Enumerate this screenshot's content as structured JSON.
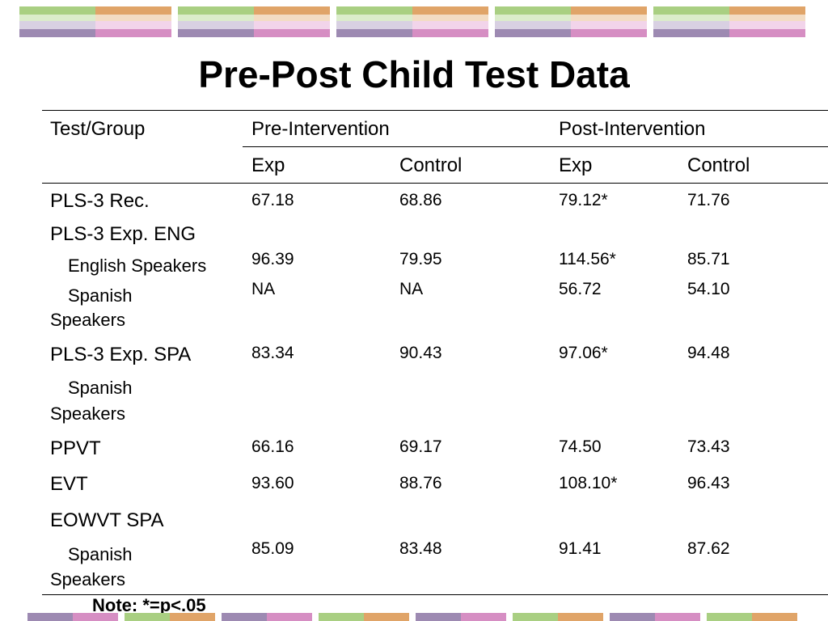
{
  "slide": {
    "title": "Pre-Post Child Test Data",
    "note": "Note: *=p<.05"
  },
  "table": {
    "headers": {
      "group": "Test/Group",
      "pre": "Pre-Intervention",
      "post": "Post-Intervention",
      "pre_exp": "Exp",
      "pre_control": "Control",
      "post_exp": "Exp",
      "post_control": "Control"
    },
    "rows": {
      "pls3_rec": {
        "label": "PLS-3 Rec.",
        "pre_exp": "67.18",
        "pre_control": "68.86",
        "post_exp": "79.12*",
        "post_control": "71.76"
      },
      "pls3_exp_eng": {
        "label": "PLS-3 Exp. ENG"
      },
      "english_speakers": {
        "label": "English Speakers",
        "pre_exp": "96.39",
        "pre_control": "79.95",
        "post_exp": "114.56*",
        "post_control": "85.71"
      },
      "spanish_speakers_1": {
        "label_line1": "Spanish",
        "label_line2": "Speakers",
        "pre_exp": "NA",
        "pre_control": "NA",
        "post_exp": "56.72",
        "post_control": "54.10"
      },
      "pls3_exp_spa": {
        "label": "PLS-3 Exp. SPA",
        "pre_exp": "83.34",
        "pre_control": "90.43",
        "post_exp": "97.06*",
        "post_control": "94.48"
      },
      "spanish_speakers_2": {
        "label_line1": "Spanish",
        "label_line2": "Speakers"
      },
      "ppvt": {
        "label": "PPVT",
        "pre_exp": "66.16",
        "pre_control": "69.17",
        "post_exp": "74.50",
        "post_control": "73.43"
      },
      "evt": {
        "label": "EVT",
        "pre_exp": "93.60",
        "pre_control": "88.76",
        "post_exp": "108.10*",
        "post_control": "96.43"
      },
      "eowvt_spa": {
        "label": "EOWVT SPA"
      },
      "spanish_speakers_3": {
        "label_line1": "Spanish",
        "label_line2": "Speakers",
        "pre_exp": "85.09",
        "pre_control": "83.48",
        "post_exp": "91.41",
        "post_control": "87.62"
      }
    }
  },
  "theme": {
    "green": "#a9cf82",
    "orange": "#e0a468",
    "purple": "#9d8ab2",
    "pink": "#d68ec3",
    "light_green": "#dbeccb",
    "light_orange": "#f3dcc3",
    "light_purple": "#d8d0e2",
    "light_pink": "#f2d4ea"
  }
}
